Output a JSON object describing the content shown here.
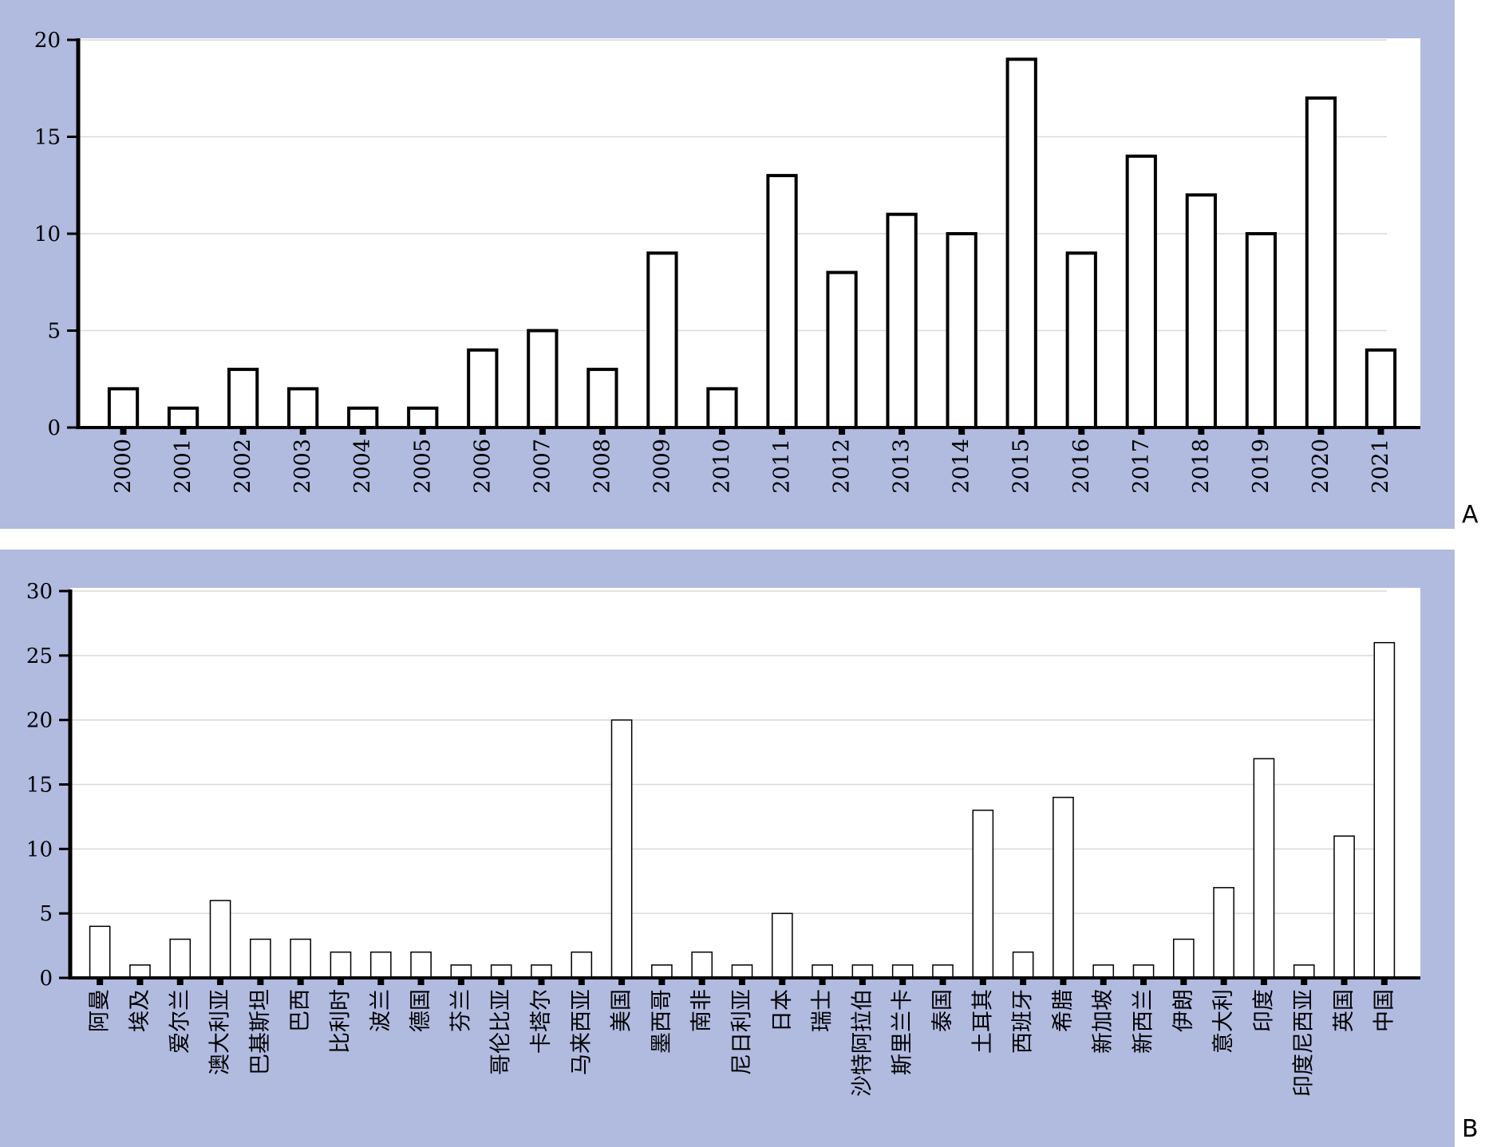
{
  "figure": {
    "panel_a_letter": "A",
    "panel_b_letter": "B"
  },
  "colors": {
    "panel_bg": "#b1badf",
    "plot_bg": "#ffffff",
    "bar_fill": "#ffffff",
    "bar_stroke": "#000000",
    "grid": "#d9d9d9"
  },
  "chart_data": [
    {
      "type": "bar",
      "panel": "A",
      "title": "",
      "xlabel": "",
      "ylabel": "",
      "ylim": [
        0,
        20
      ],
      "yticks": [
        0,
        5,
        10,
        15,
        20
      ],
      "grid": true,
      "categories": [
        "2000",
        "2001",
        "2002",
        "2003",
        "2004",
        "2005",
        "2006",
        "2007",
        "2008",
        "2009",
        "2010",
        "2011",
        "2012",
        "2013",
        "2014",
        "2015",
        "2016",
        "2017",
        "2018",
        "2019",
        "2020",
        "2021"
      ],
      "values": [
        2,
        1,
        3,
        2,
        1,
        1,
        4,
        5,
        3,
        9,
        2,
        13,
        8,
        11,
        10,
        19,
        9,
        14,
        12,
        10,
        17,
        4
      ]
    },
    {
      "type": "bar",
      "panel": "B",
      "title": "",
      "xlabel": "",
      "ylabel": "",
      "ylim": [
        0,
        30
      ],
      "yticks": [
        0,
        5,
        10,
        15,
        20,
        25,
        30
      ],
      "grid": true,
      "categories": [
        "阿曼",
        "埃及",
        "爱尔兰",
        "澳大利亚",
        "巴基斯坦",
        "巴西",
        "比利时",
        "波兰",
        "德国",
        "芬兰",
        "哥伦比亚",
        "卡塔尔",
        "马来西亚",
        "美国",
        "墨西哥",
        "南非",
        "尼日利亚",
        "日本",
        "瑞士",
        "沙特阿拉伯",
        "斯里兰卡",
        "泰国",
        "土耳其",
        "西班牙",
        "希腊",
        "新加坡",
        "新西兰",
        "伊朗",
        "意大利",
        "印度",
        "印度尼西亚",
        "英国",
        "中国"
      ],
      "values": [
        4,
        1,
        3,
        6,
        3,
        3,
        2,
        2,
        2,
        1,
        1,
        1,
        2,
        20,
        1,
        2,
        1,
        5,
        1,
        1,
        1,
        1,
        13,
        2,
        14,
        1,
        1,
        3,
        7,
        17,
        1,
        11,
        26
      ]
    }
  ]
}
